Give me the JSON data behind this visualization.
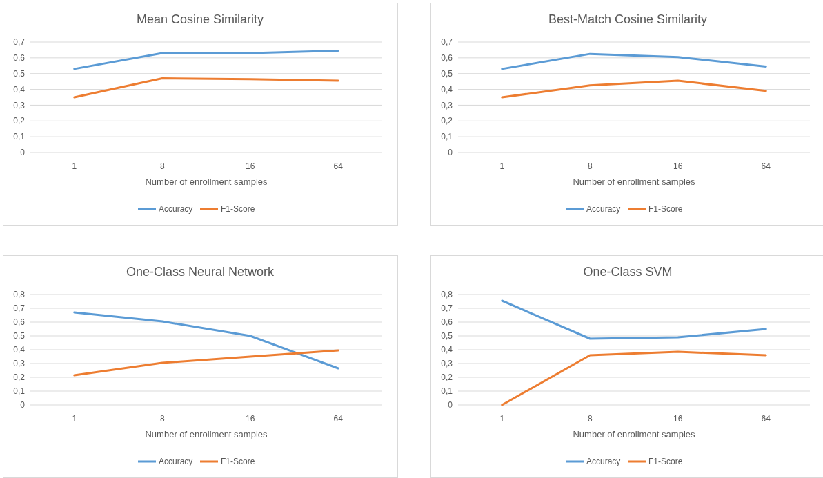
{
  "chart_data": [
    {
      "type": "line",
      "title": "Mean Cosine Similarity",
      "xlabel": "Number of enrollment samples",
      "categories": [
        "1",
        "8",
        "16",
        "64"
      ],
      "ylim": [
        0,
        0.7
      ],
      "yticks": [
        {
          "value": 0,
          "label": "0"
        },
        {
          "value": 0.1,
          "label": "0,1"
        },
        {
          "value": 0.2,
          "label": "0,2"
        },
        {
          "value": 0.3,
          "label": "0,3"
        },
        {
          "value": 0.4,
          "label": "0,4"
        },
        {
          "value": 0.5,
          "label": "0,5"
        },
        {
          "value": 0.6,
          "label": "0,6"
        },
        {
          "value": 0.7,
          "label": "0,7"
        }
      ],
      "grid": "y",
      "legend": "bottom",
      "series": [
        {
          "name": "Accuracy",
          "color": "#5b9bd5",
          "values": [
            0.53,
            0.63,
            0.63,
            0.645
          ]
        },
        {
          "name": "F1-Score",
          "color": "#ed7d31",
          "values": [
            0.35,
            0.47,
            0.465,
            0.455
          ]
        }
      ]
    },
    {
      "type": "line",
      "title": "Best-Match Cosine Similarity",
      "xlabel": "Number of enrollment samples",
      "categories": [
        "1",
        "8",
        "16",
        "64"
      ],
      "ylim": [
        0,
        0.7
      ],
      "yticks": [
        {
          "value": 0,
          "label": "0"
        },
        {
          "value": 0.1,
          "label": "0,1"
        },
        {
          "value": 0.2,
          "label": "0,2"
        },
        {
          "value": 0.3,
          "label": "0,3"
        },
        {
          "value": 0.4,
          "label": "0,4"
        },
        {
          "value": 0.5,
          "label": "0,5"
        },
        {
          "value": 0.6,
          "label": "0,6"
        },
        {
          "value": 0.7,
          "label": "0,7"
        }
      ],
      "grid": "y",
      "legend": "bottom",
      "series": [
        {
          "name": "Accuracy",
          "color": "#5b9bd5",
          "values": [
            0.53,
            0.625,
            0.605,
            0.545
          ]
        },
        {
          "name": "F1-Score",
          "color": "#ed7d31",
          "values": [
            0.35,
            0.425,
            0.455,
            0.39
          ]
        }
      ]
    },
    {
      "type": "line",
      "title": "One-Class Neural Network",
      "xlabel": "Number of enrollment samples",
      "categories": [
        "1",
        "8",
        "16",
        "64"
      ],
      "ylim": [
        0,
        0.8
      ],
      "yticks": [
        {
          "value": 0,
          "label": "0"
        },
        {
          "value": 0.1,
          "label": "0,1"
        },
        {
          "value": 0.2,
          "label": "0,2"
        },
        {
          "value": 0.3,
          "label": "0,3"
        },
        {
          "value": 0.4,
          "label": "0,4"
        },
        {
          "value": 0.5,
          "label": "0,5"
        },
        {
          "value": 0.6,
          "label": "0,6"
        },
        {
          "value": 0.7,
          "label": "0,7"
        },
        {
          "value": 0.8,
          "label": "0,8"
        }
      ],
      "grid": "y",
      "legend": "bottom",
      "series": [
        {
          "name": "Accuracy",
          "color": "#5b9bd5",
          "values": [
            0.67,
            0.605,
            0.5,
            0.265
          ]
        },
        {
          "name": "F1-Score",
          "color": "#ed7d31",
          "values": [
            0.215,
            0.305,
            0.35,
            0.395
          ]
        }
      ]
    },
    {
      "type": "line",
      "title": "One-Class SVM",
      "xlabel": "Number of enrollment samples",
      "categories": [
        "1",
        "8",
        "16",
        "64"
      ],
      "ylim": [
        0,
        0.8
      ],
      "yticks": [
        {
          "value": 0,
          "label": "0"
        },
        {
          "value": 0.1,
          "label": "0,1"
        },
        {
          "value": 0.2,
          "label": "0,2"
        },
        {
          "value": 0.3,
          "label": "0,3"
        },
        {
          "value": 0.4,
          "label": "0,4"
        },
        {
          "value": 0.5,
          "label": "0,5"
        },
        {
          "value": 0.6,
          "label": "0,6"
        },
        {
          "value": 0.7,
          "label": "0,7"
        },
        {
          "value": 0.8,
          "label": "0,8"
        }
      ],
      "grid": "y",
      "legend": "bottom",
      "series": [
        {
          "name": "Accuracy",
          "color": "#5b9bd5",
          "values": [
            0.755,
            0.48,
            0.49,
            0.55
          ]
        },
        {
          "name": "F1-Score",
          "color": "#ed7d31",
          "values": [
            0,
            0.36,
            0.385,
            0.36
          ]
        }
      ]
    }
  ]
}
